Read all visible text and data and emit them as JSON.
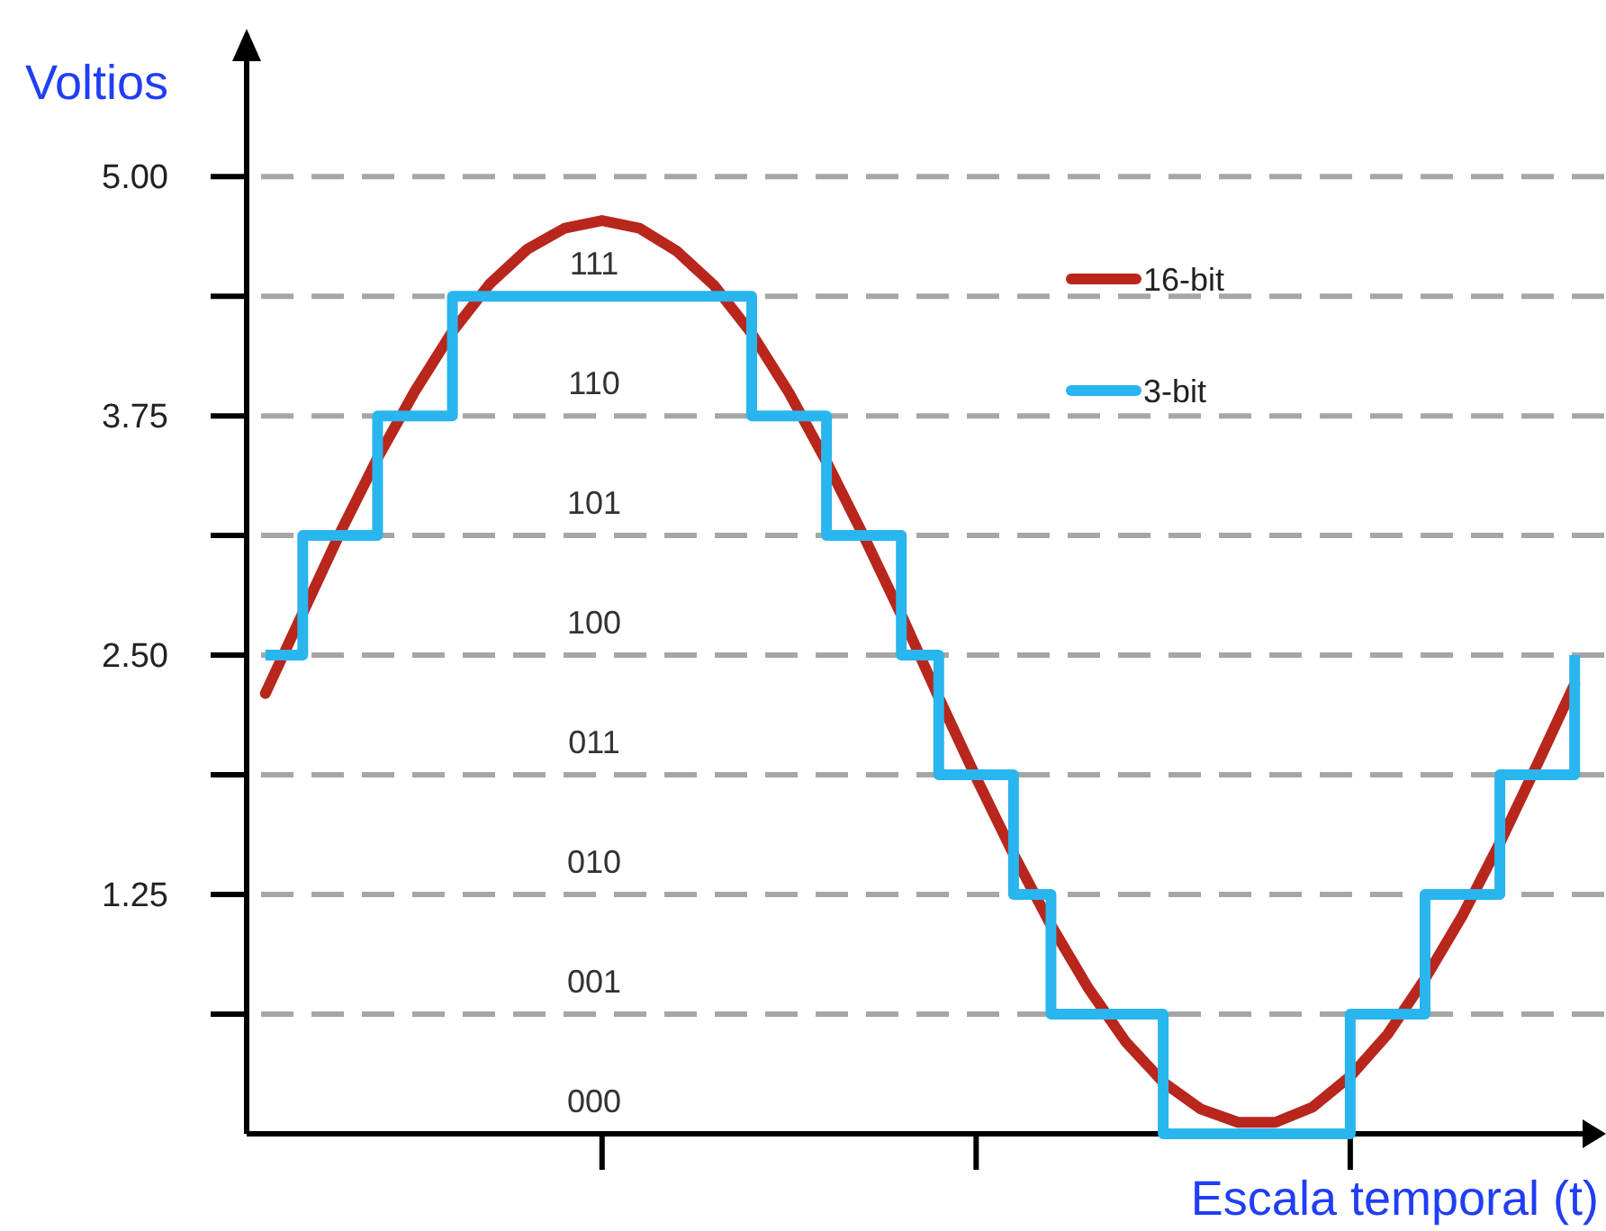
{
  "chart_data": {
    "type": "line",
    "ylabel": "Voltios",
    "xlabel": "Escala temporal (t)",
    "categories": [
      null,
      null,
      null,
      null,
      null,
      null,
      null,
      null,
      null,
      null,
      null,
      null,
      null,
      null,
      null,
      null,
      null,
      null,
      null,
      null,
      null,
      null,
      null,
      null,
      null,
      null,
      null,
      null,
      null,
      null,
      null,
      null,
      null,
      null,
      null,
      null
    ],
    "ylim": [
      0,
      5.64
    ],
    "yticks": [
      {
        "value": 0.625,
        "label": null
      },
      {
        "value": 1.25,
        "label": "1.25"
      },
      {
        "value": 1.875,
        "label": null
      },
      {
        "value": 2.5,
        "label": "2.50"
      },
      {
        "value": 3.125,
        "label": null
      },
      {
        "value": 3.75,
        "label": "3.75"
      },
      {
        "value": 4.375,
        "label": null
      },
      {
        "value": 5,
        "label": "5.00"
      }
    ],
    "tick_labels": "y",
    "grid": "y",
    "legend": "top right",
    "series": [
      {
        "name": "16-bit",
        "color": "#b8261c",
        "values": [
          2.3,
          2.72,
          3.14,
          3.53,
          3.88,
          4.19,
          4.44,
          4.62,
          4.73,
          4.77,
          4.73,
          4.61,
          4.43,
          4.18,
          3.87,
          3.51,
          3.12,
          2.71,
          2.28,
          1.86,
          1.46,
          1.09,
          0.76,
          0.48,
          0.27,
          0.13,
          0.06,
          0.06,
          0.14,
          0.3,
          0.52,
          0.81,
          1.14,
          1.52,
          1.93,
          2.35
        ]
      },
      {
        "name": "3-bit",
        "type": "step",
        "color": "#29b5ee",
        "values": [
          2.5,
          3.125,
          3.125,
          3.75,
          3.75,
          4.375,
          4.375,
          4.375,
          4.375,
          4.375,
          4.375,
          4.375,
          4.375,
          3.75,
          3.75,
          3.125,
          3.125,
          2.5,
          1.875,
          1.875,
          1.25,
          0.625,
          0.625,
          0.625,
          0,
          0,
          0,
          0,
          0,
          0.625,
          0.625,
          1.25,
          1.25,
          1.875,
          1.875,
          2.5
        ]
      }
    ],
    "annotations": [
      "000",
      "001",
      "010",
      "011",
      "100",
      "101",
      "110",
      "111"
    ]
  }
}
